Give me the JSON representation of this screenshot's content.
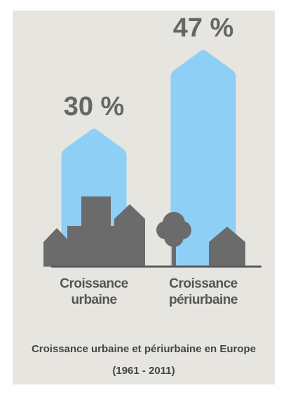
{
  "chart_data": {
    "type": "bar",
    "title": "Croissance urbaine et périurbaine en Europe (1961 - 2011)",
    "categories": [
      "Croissance urbaine",
      "Croissance périurbaine"
    ],
    "values": [
      30,
      47
    ],
    "value_labels": [
      "30 %",
      "47 %"
    ],
    "color": "#8ecff5"
  }
}
